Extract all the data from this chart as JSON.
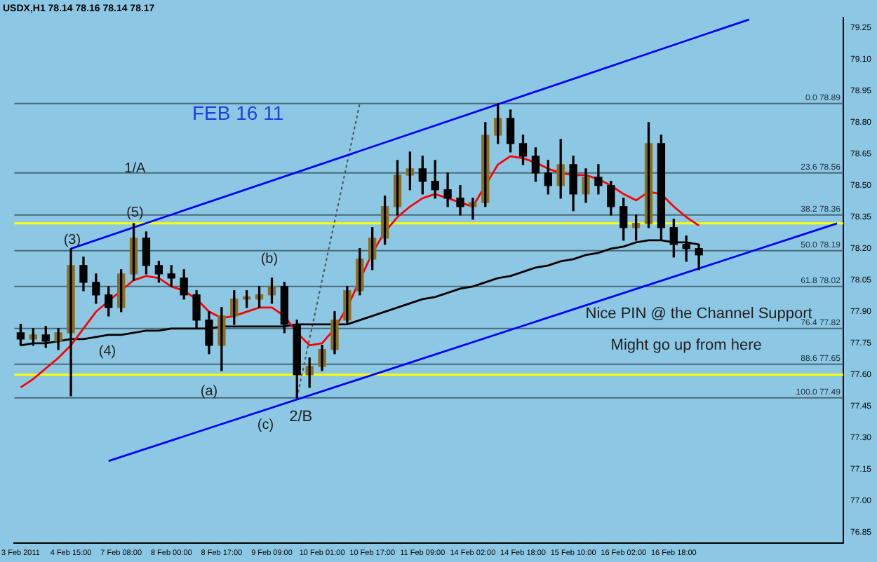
{
  "chart_data": {
    "type": "candlestick",
    "title": "USDX,H1 78.14 78.16 78.14 78.17",
    "colors": [
      "#000000",
      "#8c6d1f",
      "#000000",
      "#8c6d1f",
      "#8c6d1f",
      "#000000",
      "#000000",
      "#000000",
      "#8c6d1f",
      "#8c6d1f",
      "#000000",
      "#000000",
      "#000000",
      "#000000",
      "#000000",
      "#000000",
      "#8c6d1f",
      "#8c6d1f",
      "#8c6d1f",
      "#8c6d1f",
      "#8c6d1f",
      "#000000",
      "#000000",
      "#8c6d1f",
      "#8c6d1f",
      "#8c6d1f",
      "#8c6d1f",
      "#8c6d1f",
      "#8c6d1f",
      "#8c6d1f",
      "#8c6d1f",
      "#8c6d1f",
      "#000000",
      "#000000",
      "#000000",
      "#000000",
      "#8c6d1f",
      "#8c6d1f",
      "#8c6d1f",
      "#000000",
      "#000000",
      "#000000",
      "#000000",
      "#8c6d1f",
      "#000000",
      "#8c6d1f",
      "#000000",
      "#000000",
      "#000000",
      "#8c6d1f",
      "#8c6d1f",
      "#000000",
      "#000000",
      "#000000",
      "#000000",
      null,
      null,
      null,
      null,
      null,
      null,
      null,
      null,
      null,
      null,
      null
    ],
    "categories": [
      "3 Feb 2011",
      null,
      null,
      null,
      "4 Feb 15:00",
      null,
      null,
      null,
      "7 Feb 08:00",
      null,
      null,
      null,
      "8 Feb 00:00",
      null,
      null,
      null,
      "8 Feb 17:00",
      null,
      null,
      null,
      "9 Feb 09:00",
      null,
      null,
      null,
      "10 Feb 01:00",
      null,
      null,
      null,
      "10 Feb 17:00",
      null,
      null,
      null,
      "11 Feb 09:00",
      null,
      null,
      null,
      "14 Feb 02:00",
      null,
      null,
      null,
      "14 Feb 18:00",
      null,
      null,
      null,
      "15 Feb 10:00",
      null,
      null,
      null,
      "16 Feb 02:00",
      null,
      null,
      null,
      "16 Feb 18:00",
      null,
      null,
      null,
      null,
      null,
      null,
      null,
      null,
      null,
      null,
      null,
      null,
      null
    ],
    "ohlc": [
      [
        77.8,
        77.84,
        77.74,
        77.77
      ],
      [
        77.77,
        77.82,
        77.74,
        77.79
      ],
      [
        77.79,
        77.83,
        77.73,
        77.76
      ],
      [
        77.76,
        77.82,
        77.72,
        77.8
      ],
      [
        77.8,
        78.2,
        77.5,
        78.12
      ],
      [
        78.12,
        78.16,
        78.0,
        78.04
      ],
      [
        78.04,
        78.08,
        77.94,
        77.98
      ],
      [
        77.98,
        78.02,
        77.88,
        77.92
      ],
      [
        77.92,
        78.1,
        77.9,
        78.08
      ],
      [
        78.08,
        78.32,
        78.05,
        78.25
      ],
      [
        78.25,
        78.28,
        78.08,
        78.12
      ],
      [
        78.12,
        78.14,
        78.04,
        78.08
      ],
      [
        78.08,
        78.12,
        78.02,
        78.06
      ],
      [
        78.06,
        78.1,
        77.96,
        77.98
      ],
      [
        77.98,
        78.0,
        77.82,
        77.86
      ],
      [
        77.86,
        77.9,
        77.7,
        77.74
      ],
      [
        77.74,
        77.92,
        77.62,
        77.88
      ],
      [
        77.88,
        78.0,
        77.84,
        77.96
      ],
      [
        77.96,
        78.0,
        77.92,
        77.97
      ],
      [
        77.96,
        78.02,
        77.92,
        77.98
      ],
      [
        77.98,
        78.06,
        77.94,
        78.02
      ],
      [
        78.02,
        78.04,
        77.8,
        77.84
      ],
      [
        77.84,
        77.86,
        77.49,
        77.6
      ],
      [
        77.6,
        77.68,
        77.54,
        77.64
      ],
      [
        77.64,
        77.74,
        77.62,
        77.72
      ],
      [
        77.72,
        77.9,
        77.7,
        77.86
      ],
      [
        77.86,
        78.02,
        77.84,
        78.0
      ],
      [
        78.0,
        78.2,
        77.98,
        78.15
      ],
      [
        78.15,
        78.3,
        78.1,
        78.25
      ],
      [
        78.25,
        78.45,
        78.22,
        78.4
      ],
      [
        78.4,
        78.62,
        78.36,
        78.55
      ],
      [
        78.55,
        78.66,
        78.48,
        78.58
      ],
      [
        78.58,
        78.64,
        78.46,
        78.52
      ],
      [
        78.52,
        78.62,
        78.44,
        78.48
      ],
      [
        78.48,
        78.56,
        78.4,
        78.44
      ],
      [
        78.44,
        78.5,
        78.36,
        78.4
      ],
      [
        78.4,
        78.44,
        78.34,
        78.42
      ],
      [
        78.42,
        78.8,
        78.4,
        78.74
      ],
      [
        78.74,
        78.89,
        78.7,
        78.82
      ],
      [
        78.82,
        78.86,
        78.66,
        78.7
      ],
      [
        78.7,
        78.74,
        78.6,
        78.64
      ],
      [
        78.64,
        78.68,
        78.52,
        78.56
      ],
      [
        78.56,
        78.62,
        78.46,
        78.5
      ],
      [
        78.5,
        78.72,
        78.44,
        78.6
      ],
      [
        78.6,
        78.64,
        78.38,
        78.46
      ],
      [
        78.46,
        78.58,
        78.42,
        78.54
      ],
      [
        78.54,
        78.6,
        78.46,
        78.5
      ],
      [
        78.5,
        78.52,
        78.36,
        78.4
      ],
      [
        78.4,
        78.44,
        78.24,
        78.3
      ],
      [
        78.3,
        78.36,
        78.24,
        78.32
      ],
      [
        78.32,
        78.8,
        78.3,
        78.7
      ],
      [
        78.7,
        78.74,
        78.24,
        78.3
      ],
      [
        78.3,
        78.34,
        78.16,
        78.22
      ],
      [
        78.22,
        78.26,
        78.14,
        78.2
      ],
      [
        78.2,
        78.22,
        78.1,
        78.17
      ],
      null,
      null,
      null,
      null,
      null,
      null,
      null,
      null,
      null,
      null,
      null
    ],
    "series": [
      {
        "type": "line",
        "color": "#ff0000",
        "values": [
          77.54,
          77.58,
          77.63,
          77.68,
          77.74,
          77.82,
          77.9,
          77.95,
          78.0,
          78.05,
          78.07,
          78.06,
          78.02,
          78.0,
          77.96,
          77.9,
          77.87,
          77.88,
          77.9,
          77.92,
          77.92,
          77.88,
          77.8,
          77.74,
          77.75,
          77.82,
          77.92,
          null,
          78.18,
          78.28,
          78.35,
          78.4,
          78.44,
          78.46,
          78.44,
          78.42,
          78.4,
          78.5,
          78.6,
          78.64,
          78.63,
          78.61,
          78.58,
          78.56,
          78.55,
          78.55,
          78.53,
          78.5,
          78.46,
          78.43,
          78.47,
          78.46,
          78.4,
          78.35,
          78.31,
          null,
          null,
          null,
          null,
          null,
          null,
          null,
          null,
          null,
          null,
          null
        ]
      },
      {
        "type": "line",
        "color": "#000000",
        "values": [
          77.74,
          77.75,
          77.75,
          77.76,
          77.77,
          77.77,
          77.78,
          77.79,
          77.79,
          77.8,
          77.81,
          77.81,
          77.82,
          77.82,
          77.82,
          77.82,
          77.83,
          77.83,
          77.83,
          77.83,
          77.83,
          77.83,
          77.84,
          77.84,
          77.84,
          77.84,
          77.84,
          77.86,
          77.88,
          77.9,
          77.92,
          77.94,
          77.96,
          77.97,
          77.99,
          78.01,
          78.02,
          78.04,
          78.06,
          78.07,
          78.09,
          78.11,
          78.12,
          78.14,
          78.15,
          78.17,
          78.18,
          78.2,
          78.21,
          78.23,
          78.24,
          78.24,
          78.23,
          78.23,
          78.22,
          null,
          null,
          null,
          null,
          null,
          null,
          null,
          null,
          null,
          null,
          null
        ]
      },
      {
        "type": "line",
        "color": "#0000ff",
        "values": [
          null,
          null,
          null,
          null,
          78.2,
          null,
          null,
          null,
          null,
          null,
          null,
          null,
          null,
          null,
          null,
          null,
          null,
          null,
          null,
          null,
          null,
          null,
          null,
          null,
          null,
          null,
          null,
          null,
          null,
          null,
          null,
          null,
          null,
          null,
          null,
          null,
          null,
          null,
          null,
          null,
          null,
          null,
          null,
          null,
          null,
          null,
          null,
          null,
          null,
          null,
          null,
          null,
          null,
          null,
          null,
          null,
          null,
          null,
          79.29,
          null,
          null,
          null,
          null,
          null,
          null,
          null
        ]
      },
      {
        "type": "line",
        "color": "#0000ff",
        "values": [
          null,
          null,
          null,
          null,
          null,
          null,
          null,
          77.19,
          null,
          null,
          null,
          null,
          null,
          null,
          null,
          null,
          null,
          null,
          null,
          null,
          null,
          null,
          null,
          null,
          null,
          null,
          null,
          null,
          null,
          null,
          null,
          null,
          null,
          null,
          null,
          null,
          null,
          null,
          null,
          null,
          null,
          null,
          null,
          null,
          null,
          null,
          null,
          null,
          null,
          null,
          null,
          null,
          null,
          null,
          null,
          null,
          null,
          null,
          null,
          null,
          null,
          null,
          null,
          null,
          null,
          78.32
        ]
      },
      {
        "type": "line",
        "color": "#505050",
        "line_style": "dotted",
        "values": [
          null,
          null,
          null,
          null,
          null,
          null,
          null,
          null,
          null,
          null,
          null,
          null,
          null,
          null,
          null,
          null,
          null,
          null,
          null,
          null,
          null,
          null,
          77.49,
          null,
          null,
          null,
          null,
          78.89,
          null,
          null,
          null,
          null,
          null,
          null,
          null,
          null,
          null,
          null,
          null,
          null,
          null,
          null,
          null,
          null,
          null,
          null,
          null,
          null,
          null,
          null,
          null,
          null,
          null,
          null,
          null,
          null,
          null,
          null,
          null,
          null,
          null,
          null,
          null,
          null,
          null,
          null
        ]
      }
    ],
    "ylim": [
      76.8,
      79.3
    ],
    "yticks": [
      79.25,
      {
        "value": 79.1,
        "label": "79.10"
      },
      78.95,
      {
        "value": 78.8,
        "label": "78.80"
      },
      78.65,
      {
        "value": 78.5,
        "label": "78.50"
      },
      78.35,
      {
        "value": 78.2,
        "label": "78.20"
      },
      78.05,
      {
        "value": 77.9,
        "label": "77.90"
      },
      77.75,
      {
        "value": 77.6,
        "label": "77.60"
      },
      77.45,
      {
        "value": 77.3,
        "label": "77.30"
      },
      77.15,
      {
        "value": 77.0,
        "label": "77.00"
      },
      76.85
    ],
    "ref_lines": [
      {
        "axis": "y",
        "value": 78.89,
        "label": "0.0 78.89",
        "color": "#4a6a7a"
      },
      {
        "axis": "y",
        "value": 78.56,
        "label": "23.6 78.56",
        "color": "#4a6a7a"
      },
      {
        "axis": "y",
        "value": 78.36,
        "label": "38.2 78.36",
        "color": "#4a6a7a"
      },
      {
        "axis": "y",
        "value": 78.19,
        "label": "50.0 78.19",
        "color": "#4a6a7a"
      },
      {
        "axis": "y",
        "value": 78.02,
        "label": "61.8 78.02",
        "color": "#4a6a7a"
      },
      {
        "axis": "y",
        "value": 77.82,
        "label": "76.4 77.82",
        "color": "#4a6a7a"
      },
      {
        "axis": "y",
        "value": 77.65,
        "label": "88.6 77.65",
        "color": "#4a6a7a"
      },
      {
        "axis": "y",
        "value": 77.49,
        "label": "100.0 77.49",
        "color": "#4a6a7a"
      },
      {
        "axis": "y",
        "value": 78.32,
        "color": "#ffff00"
      },
      {
        "axis": "y",
        "value": 77.6,
        "color": "#ffff00"
      }
    ],
    "annotations": [
      "FEB 16 11",
      "1/A",
      "(5)",
      "(3)",
      "(4)",
      "(b)",
      "(a)",
      "(c)",
      "2/B",
      "Nice PIN @ the Channel Support",
      "Might go up from here"
    ]
  }
}
